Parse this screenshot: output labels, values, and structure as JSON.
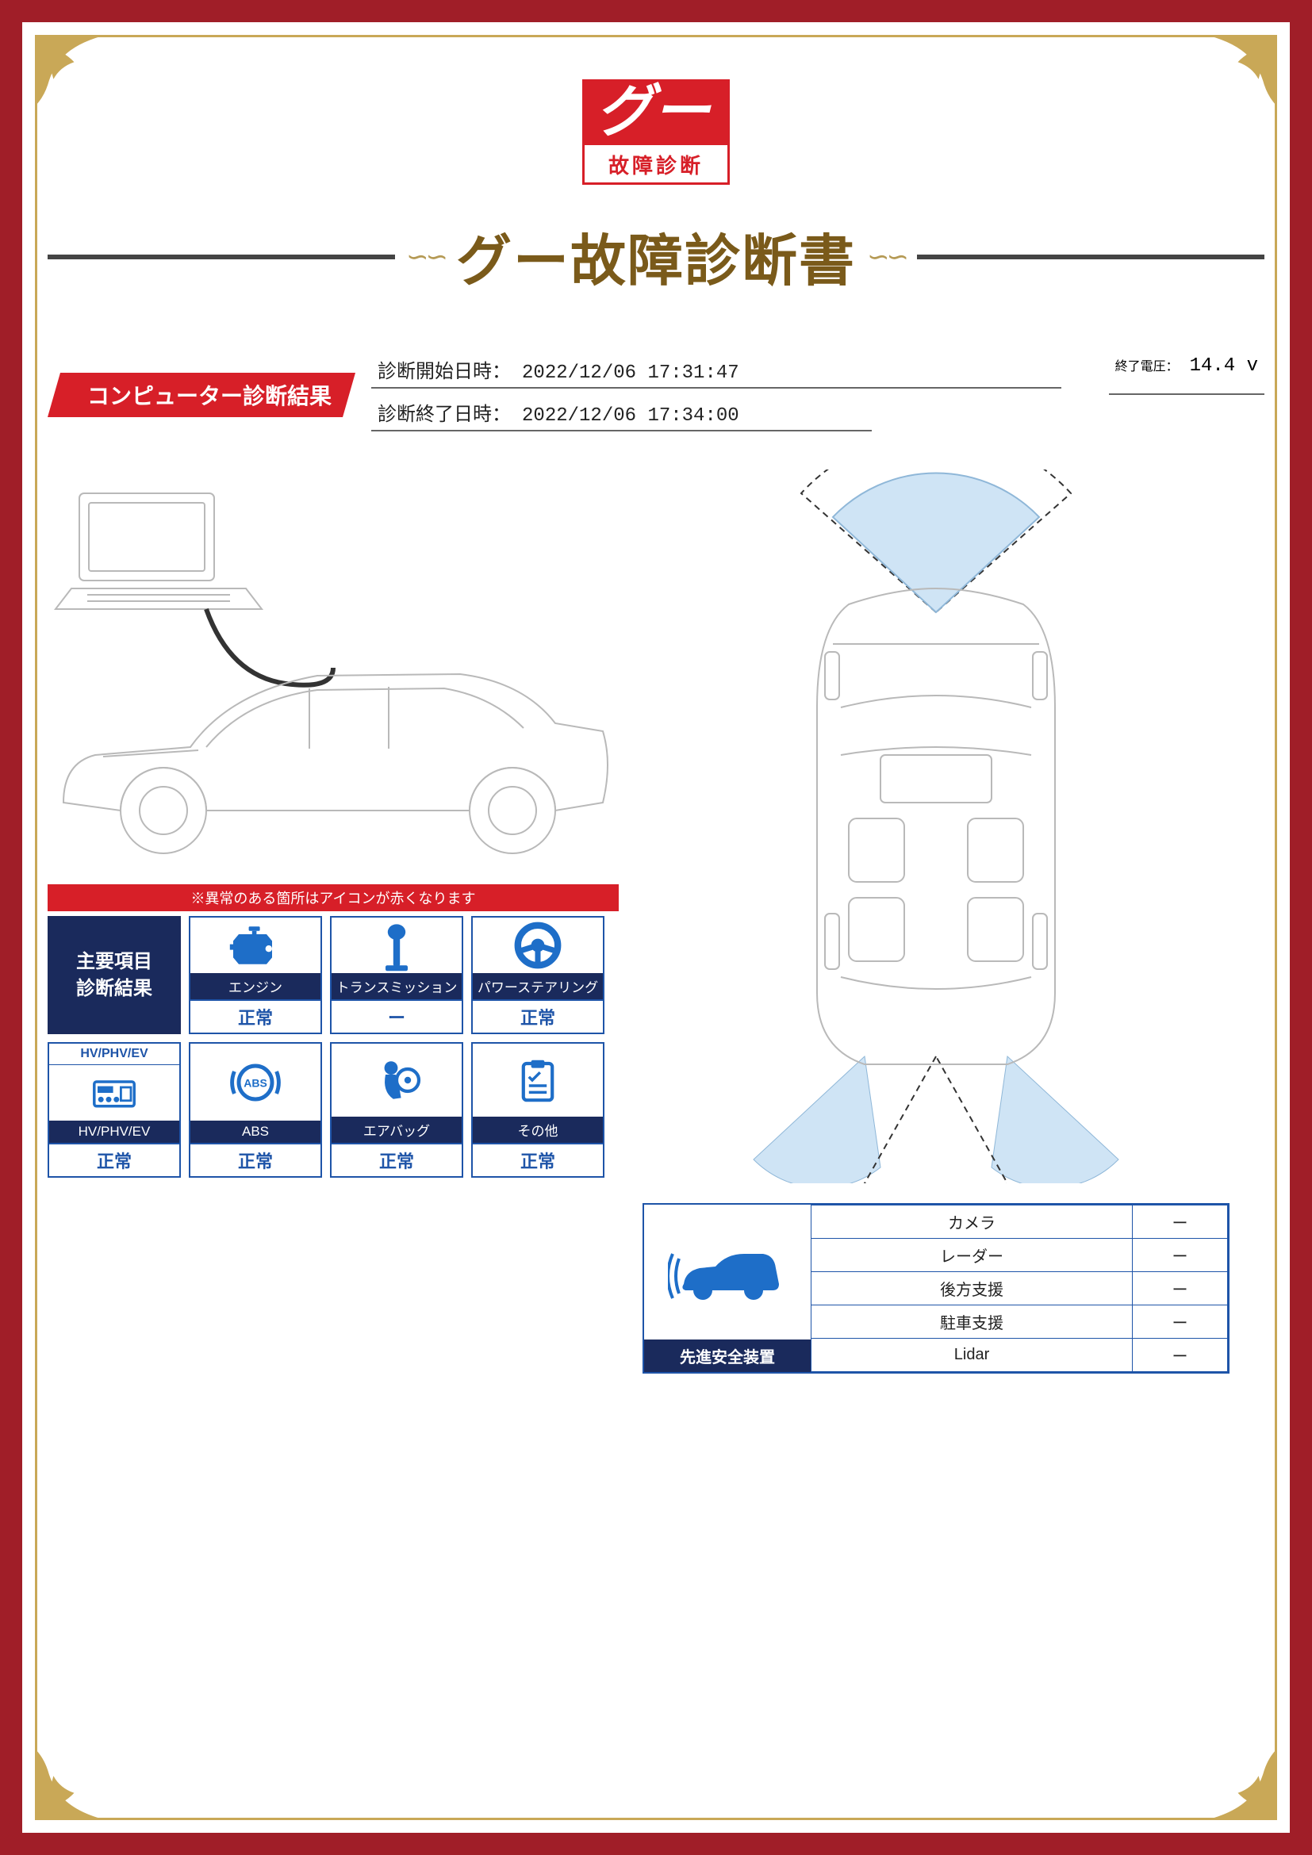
{
  "frame": {
    "outer_color": "#a01e28",
    "inner_border_color": "#c9a857",
    "corner_color": "#c9a857"
  },
  "logo": {
    "brand": "グー",
    "subtitle": "故障診断",
    "brand_bg": "#d71f28",
    "brand_fg": "#ffffff",
    "subtitle_fg": "#d71f28"
  },
  "title": {
    "text": "グー故障診断書",
    "color": "#7a5a1a",
    "ornament": "∽∽",
    "fontsize": 70
  },
  "banner": {
    "text": "コンピューター診断結果",
    "bg": "#d71f28",
    "fg": "#ffffff"
  },
  "info": {
    "start_label": "診断開始日時：",
    "start_value": "2022/12/06 17:31:47",
    "end_label": "診断終了日時：",
    "end_value": "2022/12/06 17:34:00",
    "voltage_label": "終了電圧：",
    "voltage_value": "14.4 v"
  },
  "diagrams": {
    "side_car_stroke": "#b9b9b9",
    "top_car_stroke": "#b9b9b9",
    "sensor_fill": "#cfe4f5",
    "sensor_stroke": "#333333"
  },
  "notice": "※異常のある箇所はアイコンが赤くなります",
  "diag_header": "主要項目\n診断結果",
  "diag_items": [
    {
      "name": "エンジン",
      "status": "正常",
      "icon": "engine"
    },
    {
      "name": "トランスミッション",
      "status": "ー",
      "icon": "transmission"
    },
    {
      "name": "パワーステアリング",
      "status": "正常",
      "icon": "steering"
    },
    {
      "name": "HV/PHV/EV",
      "status": "正常",
      "icon": "hvev",
      "top_label": "HV/PHV/EV"
    },
    {
      "name": "ABS",
      "status": "正常",
      "icon": "abs"
    },
    {
      "name": "エアバッグ",
      "status": "正常",
      "icon": "airbag"
    },
    {
      "name": "その他",
      "status": "正常",
      "icon": "other"
    }
  ],
  "colors": {
    "card_border": "#1e54a8",
    "card_name_bg": "#1a2a5c",
    "icon_color": "#1e6ec8",
    "status_color": "#1e54a8"
  },
  "safety": {
    "label": "先進安全装置",
    "icon_color": "#1e6ec8",
    "rows": [
      {
        "name": "カメラ",
        "value": "ー"
      },
      {
        "name": "レーダー",
        "value": "ー"
      },
      {
        "name": "後方支援",
        "value": "ー"
      },
      {
        "name": "駐車支援",
        "value": "ー"
      },
      {
        "name": "Lidar",
        "value": "ー"
      }
    ]
  }
}
